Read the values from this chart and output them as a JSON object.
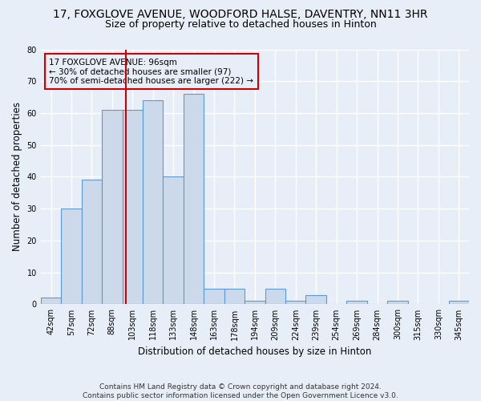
{
  "title": "17, FOXGLOVE AVENUE, WOODFORD HALSE, DAVENTRY, NN11 3HR",
  "subtitle": "Size of property relative to detached houses in Hinton",
  "xlabel": "Distribution of detached houses by size in Hinton",
  "ylabel": "Number of detached properties",
  "annotation_line1": "17 FOXGLOVE AVENUE: 96sqm",
  "annotation_line2": "← 30% of detached houses are smaller (97)",
  "annotation_line3": "70% of semi-detached houses are larger (222) →",
  "footer_line1": "Contains HM Land Registry data © Crown copyright and database right 2024.",
  "footer_line2": "Contains public sector information licensed under the Open Government Licence v3.0.",
  "bin_labels": [
    "42sqm",
    "57sqm",
    "72sqm",
    "88sqm",
    "103sqm",
    "118sqm",
    "133sqm",
    "148sqm",
    "163sqm",
    "178sqm",
    "194sqm",
    "209sqm",
    "224sqm",
    "239sqm",
    "254sqm",
    "269sqm",
    "284sqm",
    "300sqm",
    "315sqm",
    "330sqm",
    "345sqm"
  ],
  "bar_heights": [
    2,
    30,
    39,
    61,
    61,
    64,
    40,
    66,
    5,
    5,
    1,
    5,
    1,
    3,
    0,
    1,
    0,
    1,
    0,
    0,
    1
  ],
  "bar_color": "#ccd9ea",
  "bar_edge_color": "#5b9bd5",
  "vline_x_index": 3.67,
  "vline_color": "#cc0000",
  "ylim": [
    0,
    80
  ],
  "yticks": [
    0,
    10,
    20,
    30,
    40,
    50,
    60,
    70,
    80
  ],
  "annotation_box_color": "#cc0000",
  "background_color": "#e8eef8",
  "grid_color": "#ffffff",
  "title_fontsize": 10,
  "subtitle_fontsize": 9,
  "axis_label_fontsize": 8.5,
  "tick_fontsize": 7,
  "footer_fontsize": 6.5
}
